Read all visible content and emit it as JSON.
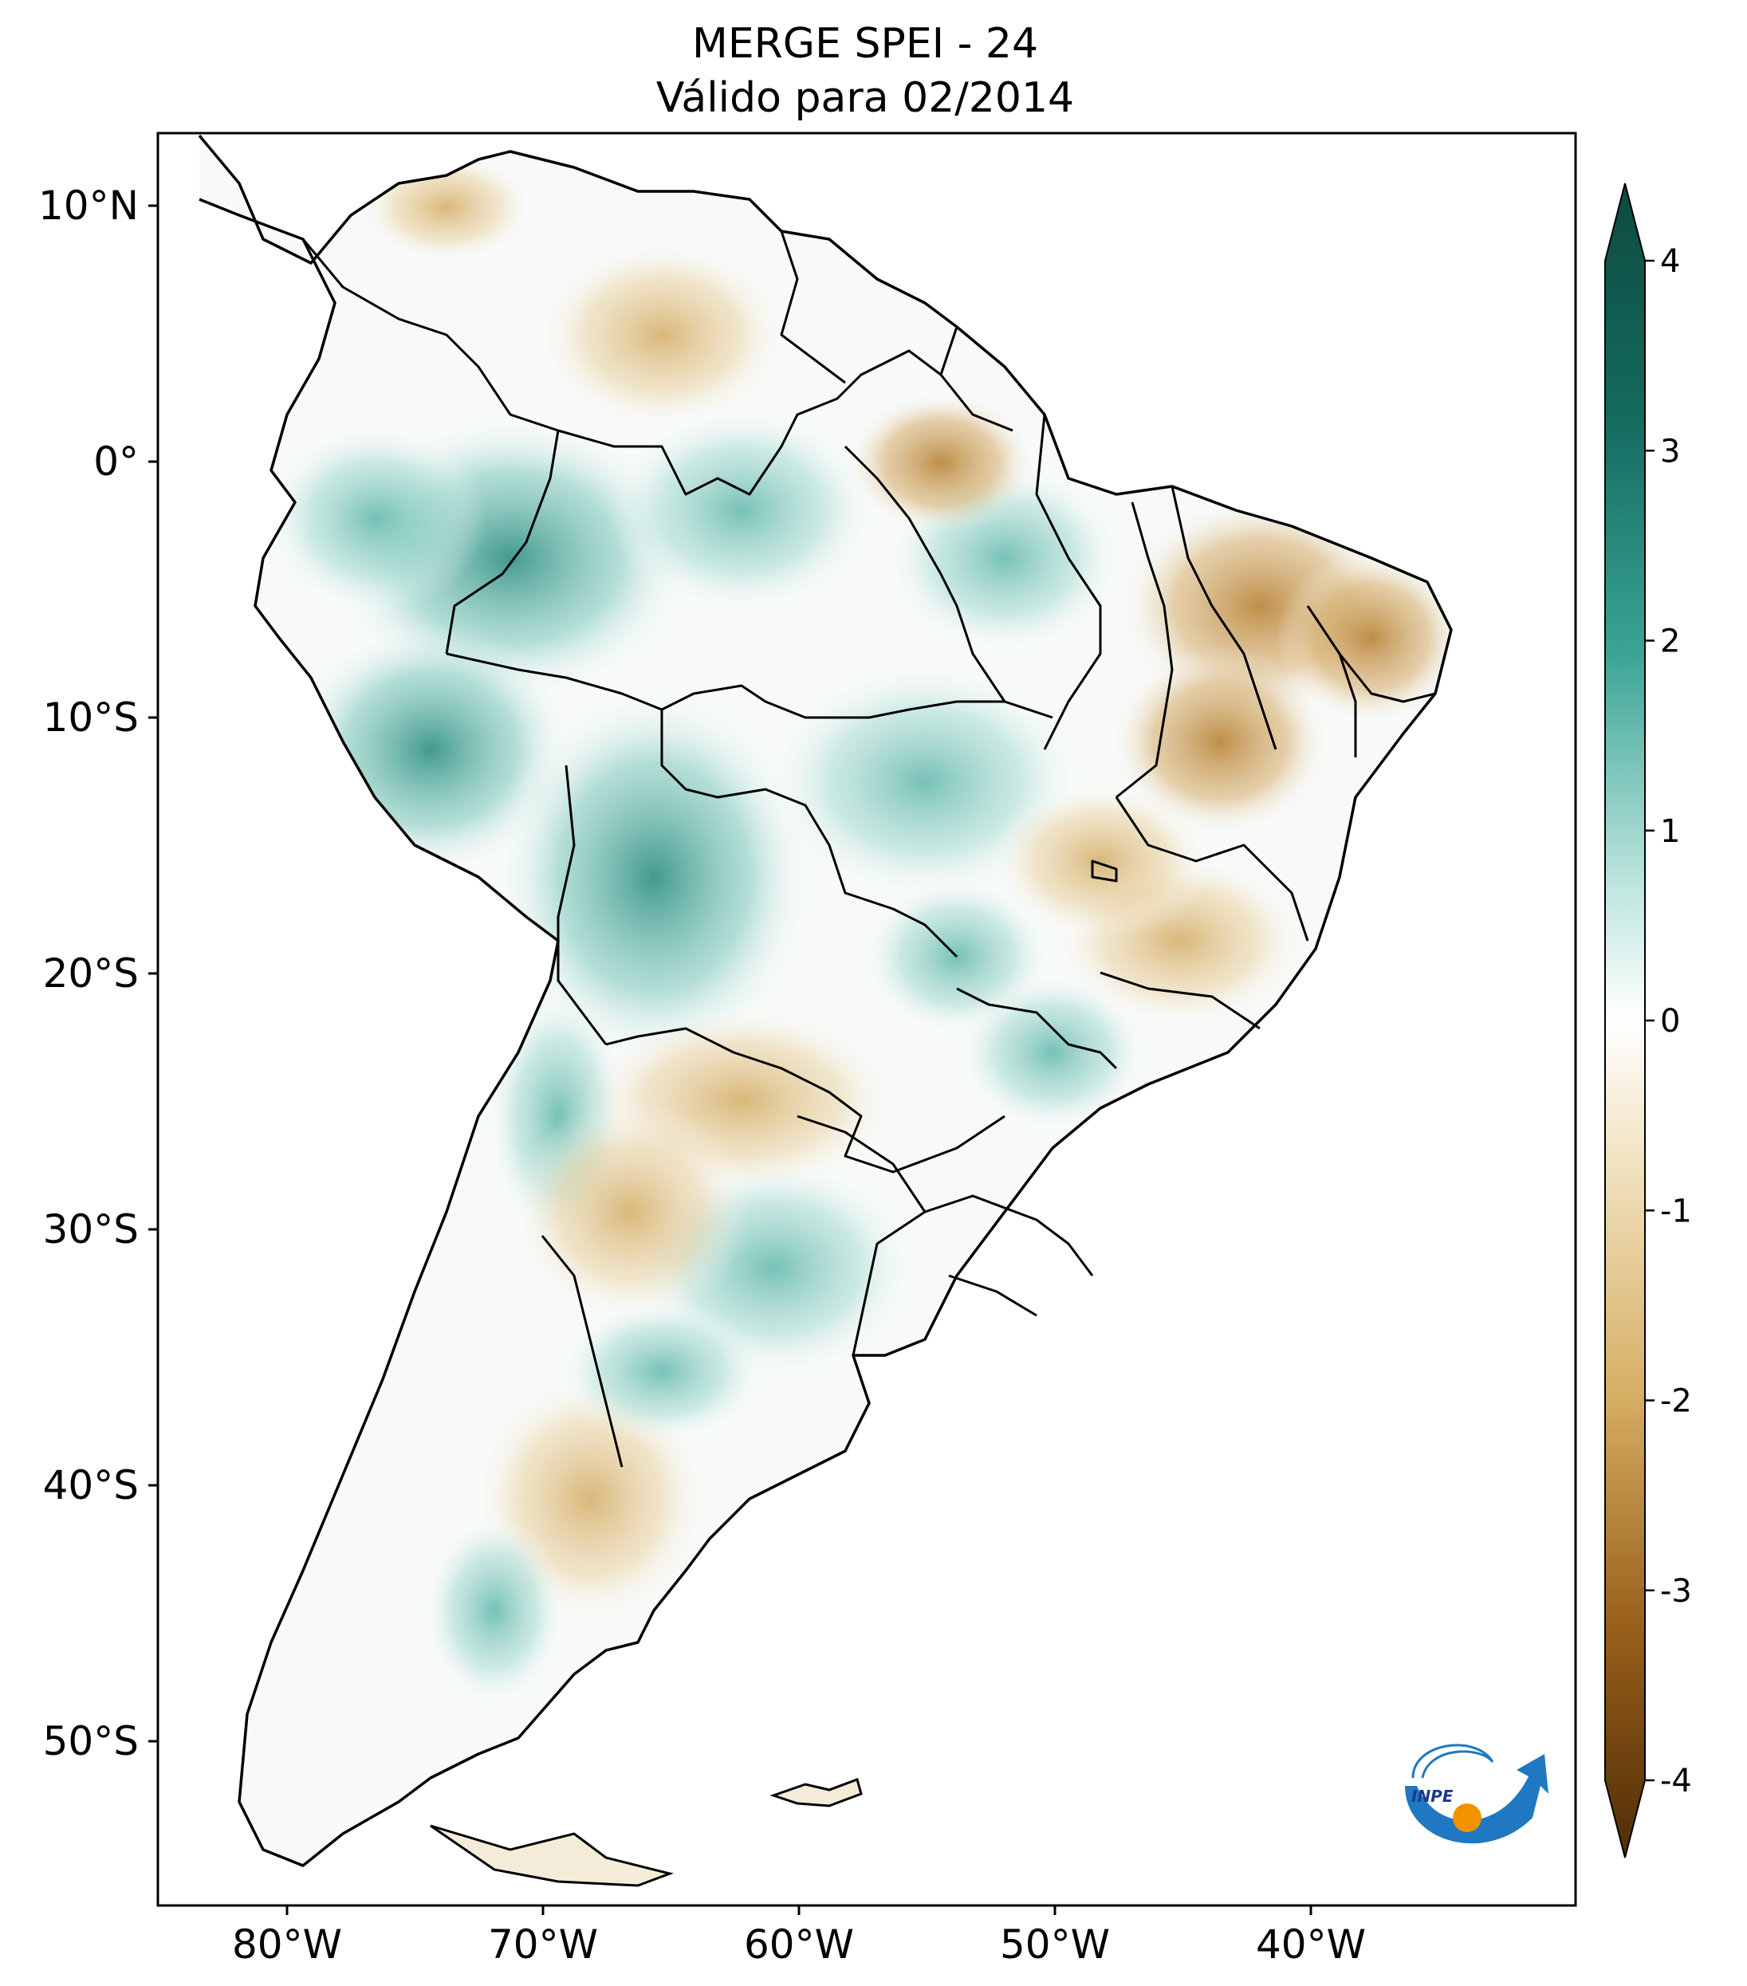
{
  "title": {
    "line1": "MERGE   SPEI - 24",
    "line2": "Válido para 02/2014"
  },
  "map": {
    "lon_ticks": [
      {
        "value": -80,
        "label": "80°W"
      },
      {
        "value": -70,
        "label": "70°W"
      },
      {
        "value": -60,
        "label": "60°W"
      },
      {
        "value": -50,
        "label": "50°W"
      },
      {
        "value": -40,
        "label": "40°W"
      }
    ],
    "lat_ticks": [
      {
        "value": 10,
        "label": "10°N"
      },
      {
        "value": 0,
        "label": "0°"
      },
      {
        "value": -10,
        "label": "10°S"
      },
      {
        "value": -20,
        "label": "20°S"
      },
      {
        "value": -30,
        "label": "30°S"
      },
      {
        "value": -40,
        "label": "40°S"
      },
      {
        "value": -50,
        "label": "50°S"
      }
    ]
  },
  "colorbar": {
    "ticks": [
      "4",
      "3",
      "2",
      "1",
      "0",
      "-1",
      "-2",
      "-3",
      "-4"
    ],
    "range": [
      -4,
      4
    ],
    "colors": {
      "max": "#0d4a40",
      "high": "#1f8c7e",
      "mid_high": "#7fcabf",
      "zero": "#ffffff",
      "mid_low": "#e7cf9b",
      "low": "#b17a2a",
      "min": "#4f2c06"
    }
  },
  "logo": {
    "text": "INPE"
  }
}
